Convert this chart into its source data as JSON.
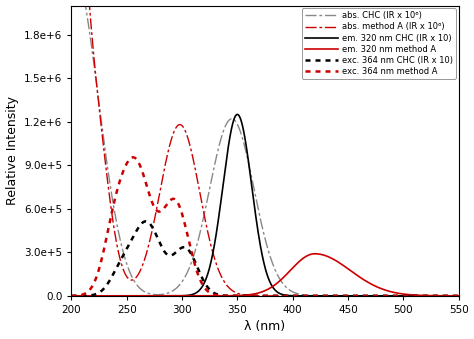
{
  "xlabel": "λ (nm)",
  "ylabel": "Relative Intensity",
  "xlim": [
    200,
    550
  ],
  "ylim": [
    0,
    2000000
  ],
  "yticks": [
    0,
    300000,
    600000,
    900000,
    1200000,
    1500000,
    1800000
  ],
  "ytick_labels": [
    "0.0",
    "3.0e+5",
    "6.0e+5",
    "9.0e+5",
    "1.2e+6",
    "1.5e+6",
    "1.8e+6"
  ],
  "xticks": [
    200,
    250,
    300,
    350,
    400,
    450,
    500,
    550
  ],
  "legend_labels": [
    "abs. CHC (IR x 10⁶)",
    "abs. method A (IR x 10⁶)",
    "em. 320 nm CHC (IR x 10)",
    "em. 320 nm method A",
    "exc. 364 nm CHC (IR x 10)",
    "exc. 364 nm method A"
  ],
  "colors": {
    "abs_CHC": "#888888",
    "abs_A": "#cc0000",
    "em_CHC": "#000000",
    "em_A": "#cc0000",
    "exc_CHC": "#000000",
    "exc_A": "#cc0000"
  },
  "background": "#ffffff"
}
